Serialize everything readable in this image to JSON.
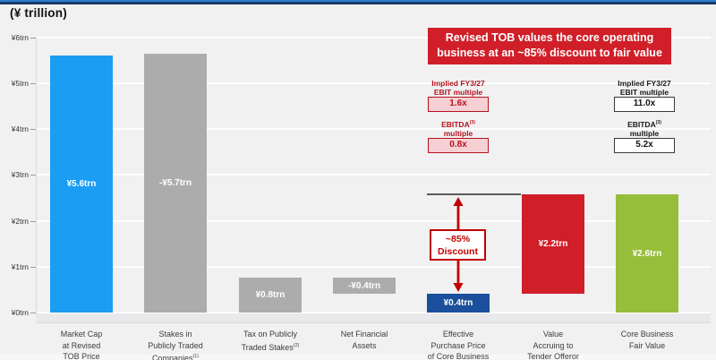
{
  "title": "(¥ trillion)",
  "banner": {
    "lines": [
      "Revised TOB values the core operating",
      "business at an ~85% discount to fair value"
    ],
    "bg_color": "#D01F28",
    "text_color": "#FFFFFF"
  },
  "multiples": {
    "left": {
      "accent_color": "#B5121E",
      "box_bg": "#F6D0D5",
      "items": [
        {
          "label_lines": [
            "Implied FY3/27",
            "EBIT multiple"
          ],
          "value": "1.6x"
        },
        {
          "label_lines": [
            "EBITDA(3)",
            "multiple"
          ],
          "value": "0.8x"
        }
      ]
    },
    "right": {
      "accent_color": "#1A1A1A",
      "box_bg": "#FFFFFF",
      "items": [
        {
          "label_lines": [
            "Implied FY3/27",
            "EBIT multiple"
          ],
          "value": "11.0x"
        },
        {
          "label_lines": [
            "EBITDA(3)",
            "multiple"
          ],
          "value": "5.2x"
        }
      ]
    }
  },
  "chart_data": {
    "type": "bar",
    "subtype": "waterfall",
    "title": "(¥ trillion)",
    "ylabel": "",
    "xlabel": "",
    "ylim": [
      0,
      6
    ],
    "grid": true,
    "yticks": [
      {
        "v": 6,
        "label": "¥6trn"
      },
      {
        "v": 5,
        "label": "¥5trn"
      },
      {
        "v": 4,
        "label": "¥4trn"
      },
      {
        "v": 3,
        "label": "¥3trn"
      },
      {
        "v": 2,
        "label": "¥2trn"
      },
      {
        "v": 1,
        "label": "¥1trn"
      },
      {
        "v": 0,
        "label": "¥0trn"
      }
    ],
    "bars": [
      {
        "name": "market-cap-at-revised-tob-price",
        "category_lines": [
          "Market Cap",
          "at Revised",
          "TOB Price"
        ],
        "value": 5.6,
        "value_label": "¥5.6trn",
        "draw_from": 0,
        "draw_to": 5.6,
        "color": "#1B9DF3"
      },
      {
        "name": "stakes-in-publicly-traded-companies",
        "category_lines": [
          "Stakes in",
          "Publicly Traded",
          "Companies(1)"
        ],
        "value": -5.7,
        "value_label": "-¥5.7trn",
        "draw_from": 0,
        "draw_to": 5.65,
        "color": "#ACACAC"
      },
      {
        "name": "tax-on-publicly-traded-stakes",
        "category_lines": [
          "Tax on Publicly",
          "Traded Stakes(2)"
        ],
        "value": 0.8,
        "value_label": "¥0.8trn",
        "draw_from": 0,
        "draw_to": 0.76,
        "color": "#ACACAC"
      },
      {
        "name": "net-financial-assets",
        "category_lines": [
          "Net Financial",
          "Assets"
        ],
        "value": -0.4,
        "value_label": "-¥0.4trn",
        "draw_from": 0.41,
        "draw_to": 0.76,
        "color": "#ACACAC"
      },
      {
        "name": "effective-purchase-price-of-core-business",
        "category_lines": [
          "Effective",
          "Purchase Price",
          "of Core Business"
        ],
        "value": 0.4,
        "value_label": "¥0.4trn",
        "draw_from": 0,
        "draw_to": 0.41,
        "color": "#1B4F9C"
      },
      {
        "name": "value-accruing-to-tender-offeror",
        "category_lines": [
          "Value",
          "Accruing to",
          "Tender Offeror"
        ],
        "value": 2.2,
        "value_label": "¥2.2trn",
        "draw_from": 0.42,
        "draw_to": 2.58,
        "color": "#D01F28"
      },
      {
        "name": "core-business-fair-value",
        "category_lines": [
          "Core Business",
          "Fair Value"
        ],
        "value": 2.6,
        "value_label": "¥2.6trn",
        "draw_from": 0,
        "draw_to": 2.58,
        "color": "#97BE3B"
      }
    ],
    "annotations": {
      "fair_value_line": {
        "value": 2.58,
        "from_bar_index": 4,
        "to_bar_index": 5,
        "color": "#5A5A5A"
      },
      "discount_arrow": {
        "bar_index": 4,
        "from_value": 0.44,
        "to_value": 2.52,
        "color": "#C00000"
      },
      "discount_label": {
        "lines": [
          "~85%",
          "Discount"
        ],
        "text_color": "#C00000",
        "bg_color": "#FFFFFF"
      }
    }
  }
}
